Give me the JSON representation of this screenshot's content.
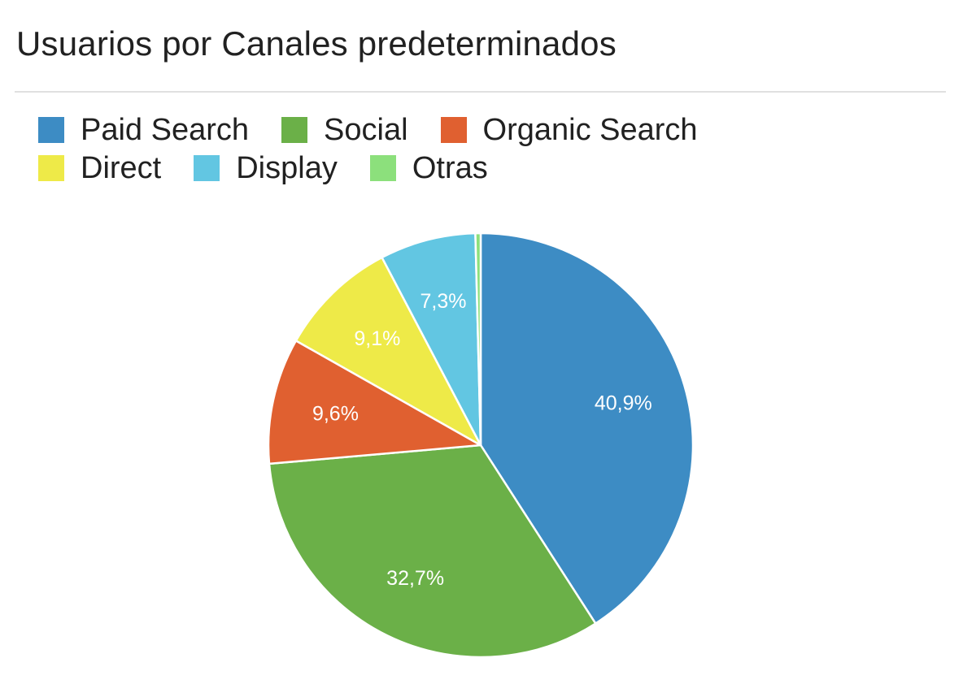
{
  "chart_data": {
    "type": "pie",
    "title": "Usuarios por Canales predeterminados",
    "legend_position": "top",
    "slices": [
      {
        "name": "Paid Search",
        "value": 40.9,
        "label": "40,9%",
        "color": "#3d8cc4"
      },
      {
        "name": "Social",
        "value": 32.7,
        "label": "32,7%",
        "color": "#6bb048"
      },
      {
        "name": "Organic Search",
        "value": 9.6,
        "label": "9,6%",
        "color": "#e06030"
      },
      {
        "name": "Direct",
        "value": 9.1,
        "label": "9,1%",
        "color": "#eeea48"
      },
      {
        "name": "Display",
        "value": 7.3,
        "label": "7,3%",
        "color": "#62c6e2"
      },
      {
        "name": "Otras",
        "value": 0.4,
        "label": "",
        "color": "#8ce07c"
      }
    ]
  }
}
